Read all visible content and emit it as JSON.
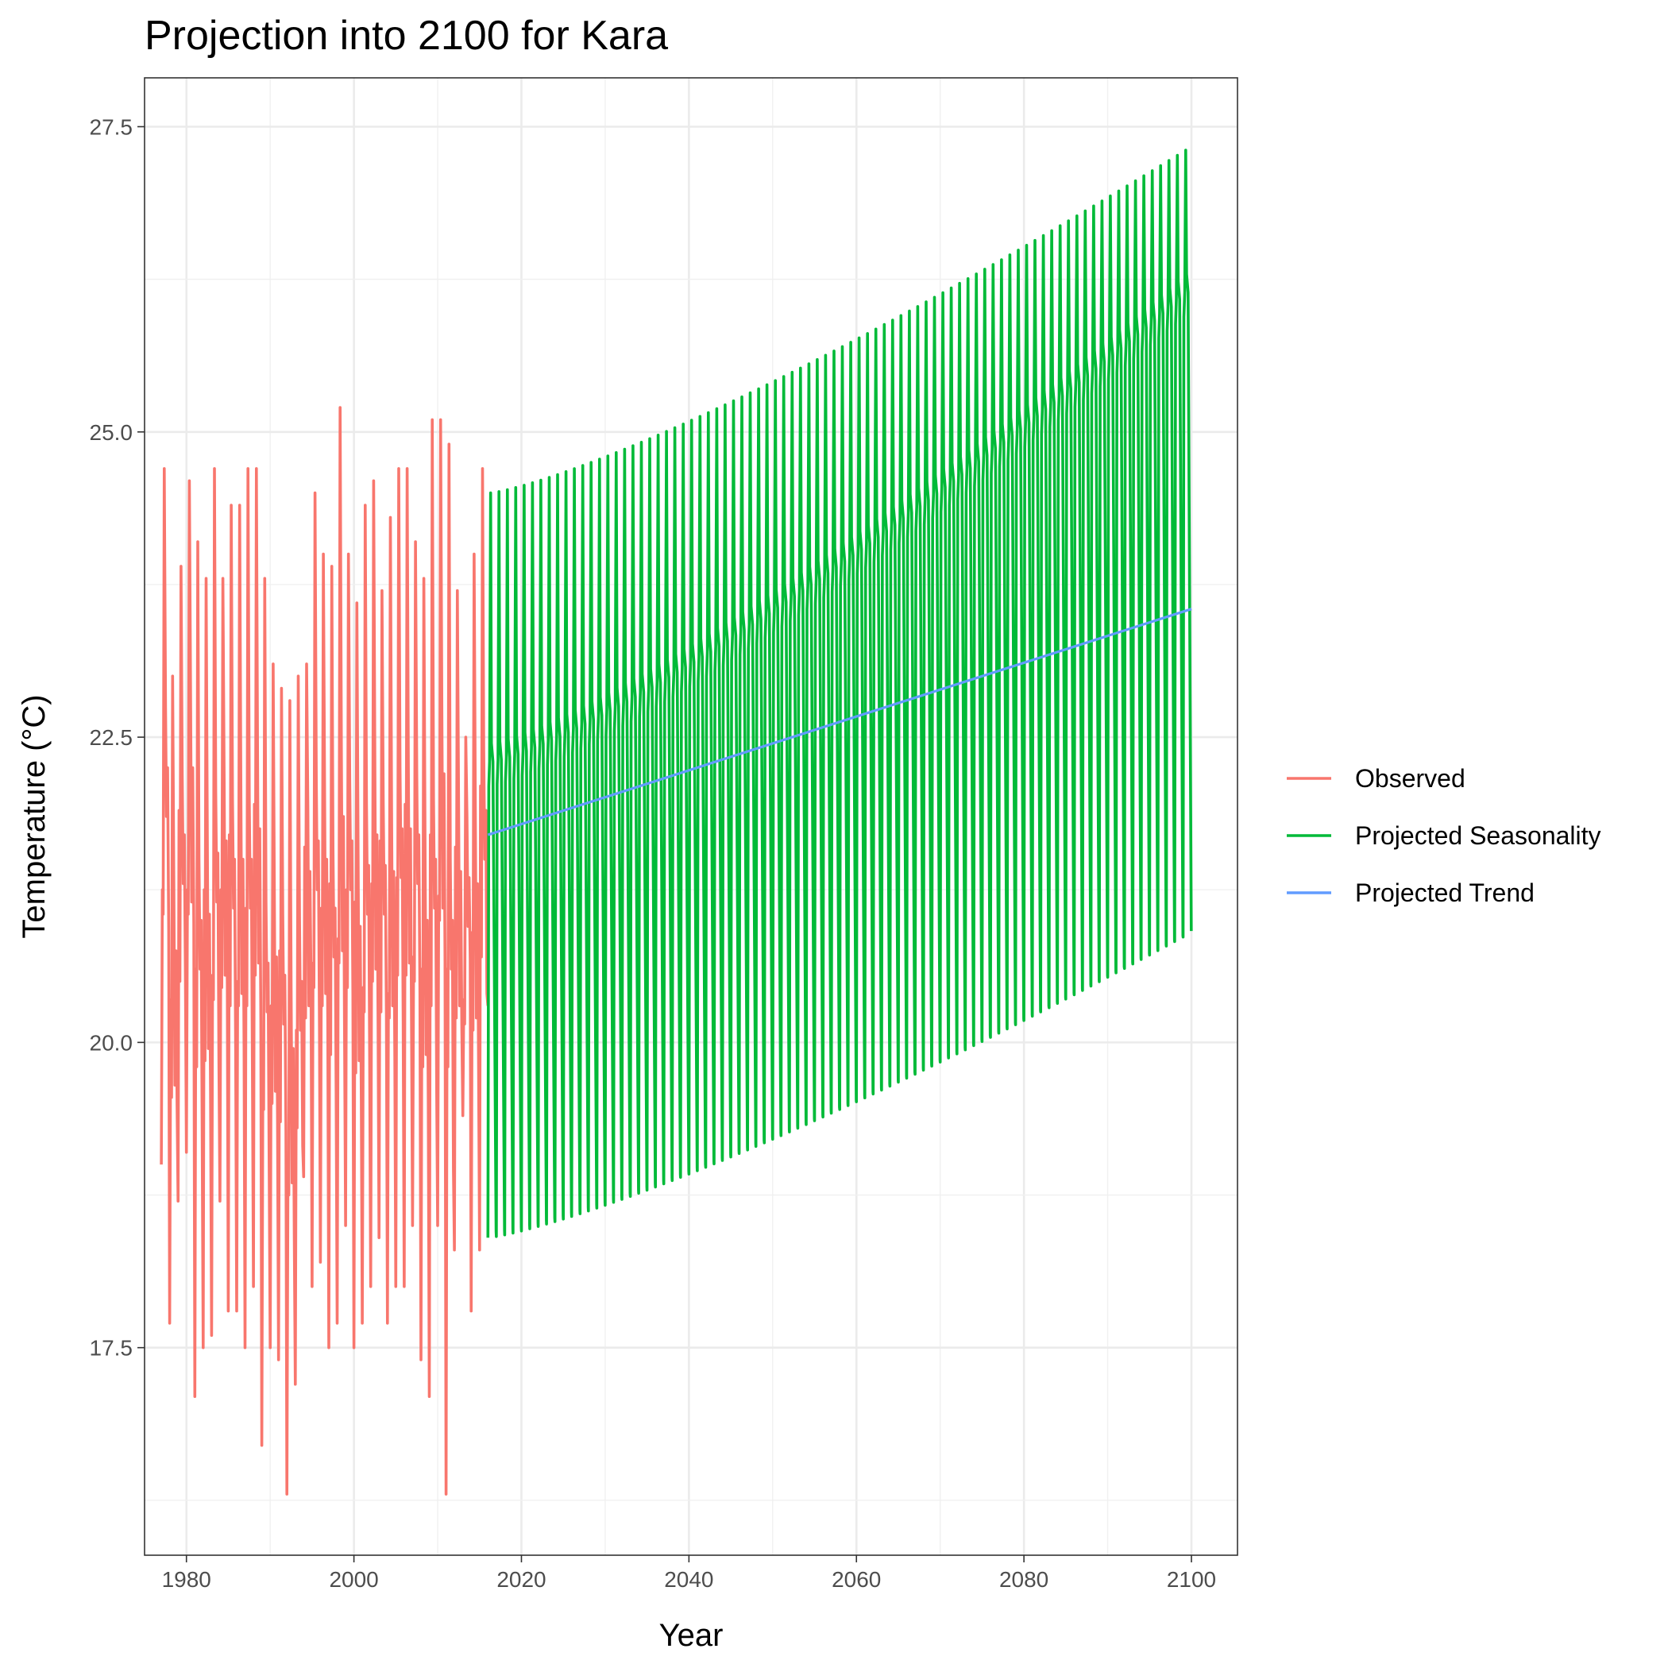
{
  "chart_data": {
    "type": "line",
    "title": "Projection into 2100 for Kara",
    "xlabel": "Year",
    "ylabel": "Temperature (°C)",
    "xlim": [
      1975,
      2105.5
    ],
    "ylim": [
      15.8,
      27.9
    ],
    "x_ticks": [
      1980,
      2000,
      2020,
      2040,
      2060,
      2080,
      2100
    ],
    "x_tick_labels": [
      "1980",
      "2000",
      "2020",
      "2040",
      "2060",
      "2080",
      "2100"
    ],
    "y_ticks": [
      17.5,
      20.0,
      22.5,
      25.0,
      27.5
    ],
    "y_tick_labels": [
      "17.5",
      "20.0",
      "22.5",
      "25.0",
      "27.5"
    ],
    "grid": true,
    "legend_position": "right",
    "colors": {
      "observed": "#F8766D",
      "seasonality": "#00BA38",
      "trend": "#619CFF"
    },
    "series": [
      {
        "name": "Observed",
        "x_start": 1977,
        "x_end": 2016,
        "annual_peaks": [
          24.7,
          23.0,
          23.9,
          24.6,
          24.1,
          23.8,
          24.7,
          23.8,
          24.4,
          24.4,
          24.7,
          24.7,
          23.8,
          23.1,
          22.9,
          22.8,
          23.0,
          23.1,
          24.5,
          24.0,
          23.9,
          25.2,
          24.0,
          23.6,
          24.4,
          24.6,
          23.7,
          24.3,
          24.7,
          24.7,
          24.1,
          23.8,
          25.1,
          25.1,
          24.9,
          23.7,
          22.5,
          24.0,
          24.7
        ],
        "annual_troughs": [
          19.0,
          17.7,
          18.7,
          19.1,
          17.1,
          17.5,
          17.6,
          18.7,
          17.8,
          17.8,
          17.5,
          18.0,
          16.7,
          17.5,
          17.4,
          16.3,
          17.2,
          18.9,
          18.0,
          18.2,
          17.5,
          17.7,
          18.5,
          17.5,
          17.7,
          18.0,
          18.4,
          17.7,
          18.0,
          18.0,
          18.5,
          17.4,
          17.1,
          18.5,
          16.3,
          18.3,
          19.4,
          17.8,
          18.3
        ]
      },
      {
        "name": "Projected Seasonality",
        "x_start": 2016,
        "x_end": 2100,
        "start_peak": 24.5,
        "end_peak": 27.35,
        "start_trough": 18.4,
        "end_trough": 20.9
      },
      {
        "name": "Projected Trend",
        "x": [
          2016,
          2100
        ],
        "y": [
          21.7,
          23.55
        ]
      }
    ]
  }
}
